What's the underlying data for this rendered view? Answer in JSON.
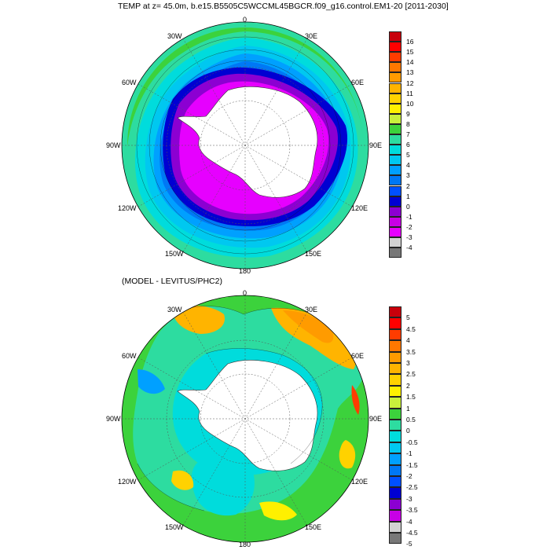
{
  "title": "TEMP at z=  45.0m, b.e15.B5505C5WCCML45BGCR.f09_g16.control.EM1-20 [2011-2030]",
  "subtitle": "(MODEL - LEVITUS/PHC2)",
  "longitude_labels": {
    "n": "0",
    "ne": "30E",
    "e1": "60E",
    "e": "90E",
    "se1": "120E",
    "se": "150E",
    "s": "180",
    "sw": "150W",
    "sw1": "120W",
    "w": "90W",
    "nw1": "60W",
    "nw": "30W"
  },
  "colorbar_top": {
    "labels": [
      "16",
      "15",
      "14",
      "13",
      "12",
      "11",
      "10",
      "9",
      "8",
      "7",
      "6",
      "5",
      "4",
      "3",
      "2",
      "1",
      "0",
      "-1",
      "-2",
      "-3",
      "-4"
    ],
    "colors": [
      "#c8000b",
      "#ff0000",
      "#ff3c00",
      "#ff7800",
      "#ff9b00",
      "#ffb400",
      "#ffd200",
      "#fff000",
      "#c8f03c",
      "#3cd23c",
      "#2ddca0",
      "#00dcdc",
      "#00c8f0",
      "#00a0ff",
      "#0078f5",
      "#0050ff",
      "#0000d2",
      "#8c00d2",
      "#c800e6",
      "#e600ff",
      "#d2d2d2",
      "#787878"
    ]
  },
  "colorbar_bottom": {
    "labels": [
      "5",
      "4.5",
      "4",
      "3.5",
      "3",
      "2.5",
      "2",
      "1.5",
      "1",
      "0.5",
      "0",
      "-0.5",
      "-1",
      "-1.5",
      "-2",
      "-2.5",
      "-3",
      "-3.5",
      "-4",
      "-4.5",
      "-5"
    ],
    "colors": [
      "#c8000b",
      "#ff0000",
      "#ff3c00",
      "#ff7800",
      "#ff9b00",
      "#ffb400",
      "#ffd200",
      "#fff000",
      "#c8f03c",
      "#3cd23c",
      "#2ddca0",
      "#00dcdc",
      "#00c8f0",
      "#00a0ff",
      "#0078f5",
      "#0050ff",
      "#0000d2",
      "#8c00d2",
      "#c800e6",
      "#d2d2d2",
      "#787878"
    ]
  },
  "colors": {
    "ice": "#e600ff",
    "sea_ice_band": "#8c00d2",
    "front_blue": "#0000d2",
    "continent": "#ffffff"
  }
}
